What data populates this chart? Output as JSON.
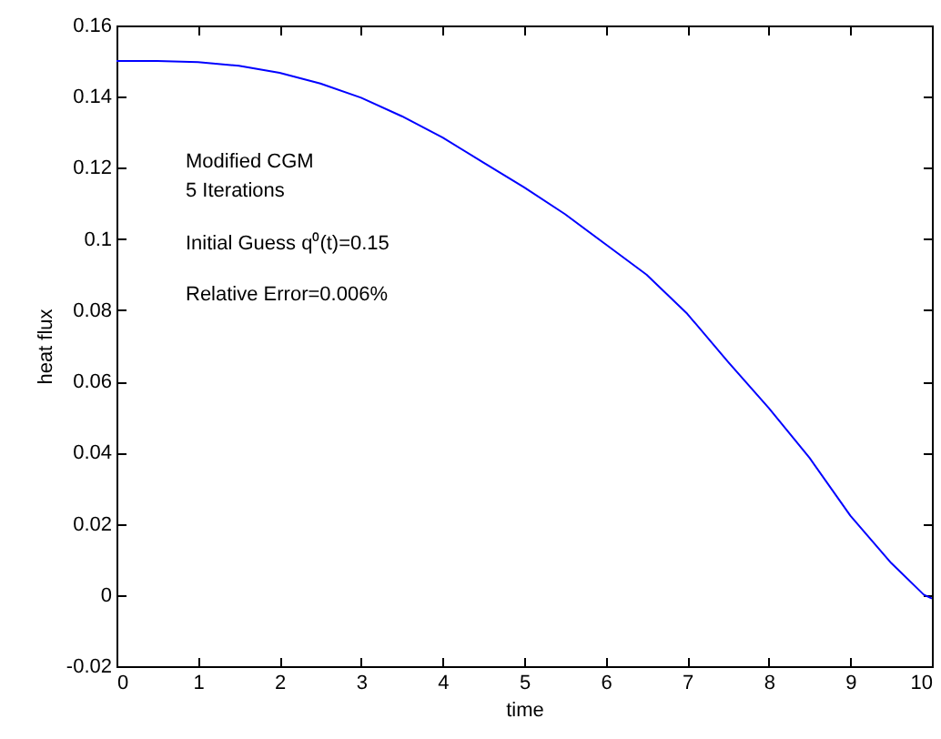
{
  "chart_data": {
    "type": "line",
    "xlabel": "time",
    "ylabel": "heat flux",
    "x": [
      0,
      0.5,
      1,
      1.5,
      2,
      2.5,
      3,
      3.5,
      4,
      4.5,
      5,
      5.5,
      6,
      6.5,
      7,
      7.5,
      8,
      8.5,
      9,
      9.5,
      9.9,
      10
    ],
    "series": [
      {
        "color": "#0000ff",
        "values": [
          0.15,
          0.15,
          0.1497,
          0.1487,
          0.1467,
          0.1437,
          0.1397,
          0.1345,
          0.1285,
          0.1215,
          0.1145,
          0.107,
          0.0985,
          0.09,
          0.079,
          0.0655,
          0.0525,
          0.0385,
          0.0223,
          0.009,
          0.0001,
          -0.001
        ]
      }
    ],
    "xlim": [
      0,
      10
    ],
    "ylim": [
      -0.02,
      0.16
    ],
    "xticks": [
      0,
      1,
      2,
      3,
      4,
      5,
      6,
      7,
      8,
      9,
      10
    ],
    "yticks": [
      -0.02,
      0,
      0.02,
      0.04,
      0.06,
      0.08,
      0.1,
      0.12,
      0.14,
      0.16
    ],
    "annotations": [
      "Modified CGM",
      "5 Iterations",
      "Initial Guess q⁰(t)=0.15",
      "Relative Error=0.006%"
    ],
    "grid": false,
    "marker": "none",
    "line_style": "solid"
  }
}
